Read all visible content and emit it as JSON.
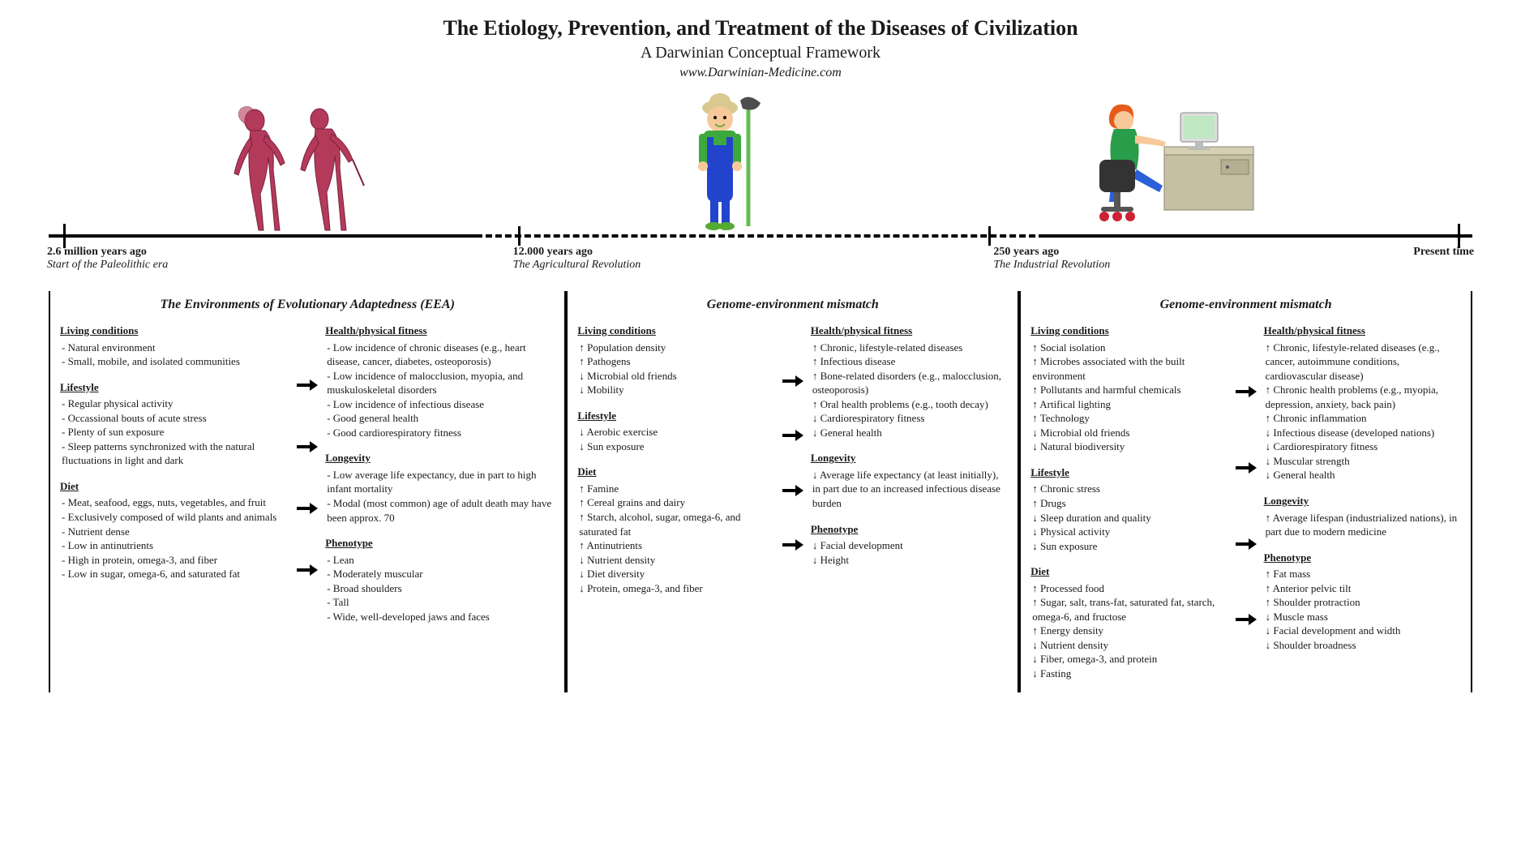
{
  "header": {
    "title": "The Etiology, Prevention, and Treatment of the Diseases of Civilization",
    "subtitle": "A Darwinian Conceptual Framework",
    "url": "www.Darwinian-Medicine.com"
  },
  "timeline": {
    "ticks": [
      {
        "pos_pct": 1,
        "top": "2.6 million years ago",
        "sub": "Start of the Paleolithic era",
        "major": true
      },
      {
        "pos_pct": 33,
        "top": "12.000 years ago",
        "sub": "The Agricultural Revolution",
        "major": false
      },
      {
        "pos_pct": 66,
        "top": "250 years ago",
        "sub": "The Industrial Revolution",
        "major": false
      },
      {
        "pos_pct": 99,
        "top": "Present time",
        "sub": "",
        "major": true
      }
    ],
    "colors": {
      "line": "#000000",
      "background": "#ffffff"
    }
  },
  "figures": {
    "caveman_color": "#b43a5a",
    "farmer": {
      "shirt": "#3da93d",
      "overalls": "#2244cc",
      "skin": "#f7c99a",
      "hat": "#d9c98e",
      "tool": "#4d4d4d"
    },
    "desk": {
      "hair": "#e85a1a",
      "shirt": "#2a9d4a",
      "pants": "#2b5fd9",
      "desk": "#c7bfa3",
      "screen": "#bfe8c2",
      "chair": "#333333",
      "wheel": "#c23"
    }
  },
  "eras": [
    {
      "title": "The Environments of Evolutionary Adaptedness (EEA)",
      "left": [
        {
          "h": "Living conditions",
          "items": [
            "- Natural environment",
            "- Small, mobile, and isolated communities"
          ]
        },
        {
          "h": "Lifestyle",
          "items": [
            "- Regular physical activity",
            "- Occassional bouts of acute stress",
            "- Plenty of sun exposure",
            "- Sleep patterns synchronized with the natural fluctuations in light and dark"
          ]
        },
        {
          "h": "Diet",
          "items": [
            "- Meat, seafood, eggs, nuts, vegetables, and fruit",
            "- Exclusively composed of wild plants and animals",
            "- Nutrient dense",
            "- Low in antinutrients",
            "- High in protein, omega-3, and fiber",
            "- Low in sugar, omega-6, and saturated fat"
          ]
        }
      ],
      "right": [
        {
          "h": "Health/physical fitness",
          "items": [
            "- Low incidence of chronic diseases (e.g., heart disease, cancer, diabetes, osteoporosis)",
            "- Low incidence of malocclusion, myopia, and muskuloskeletal disorders",
            "- Low incidence of infectious disease",
            "- Good general health",
            "- Good cardiorespiratory fitness"
          ]
        },
        {
          "h": "Longevity",
          "items": [
            "- Low average life expectancy, due in part to high infant mortality",
            "- Modal (most common) age of adult death may have been approx. 70"
          ]
        },
        {
          "h": "Phenotype",
          "items": [
            "- Lean",
            "- Moderately muscular",
            "- Broad shoulders",
            "- Tall",
            "- Wide, well-developed jaws and faces"
          ]
        }
      ],
      "arrow_count": 4
    },
    {
      "title": "Genome-environment mismatch",
      "left": [
        {
          "h": "Living conditions",
          "items": [
            "↑ Population density",
            "↑ Pathogens",
            "↓ Microbial old friends",
            "↓ Mobility"
          ]
        },
        {
          "h": "Lifestyle",
          "items": [
            "↓ Aerobic exercise",
            "↓ Sun exposure"
          ]
        },
        {
          "h": "Diet",
          "items": [
            "↑ Famine",
            "↑ Cereal grains and dairy",
            "↑ Starch, alcohol, sugar, omega-6, and saturated fat",
            "↑ Antinutrients",
            "↓ Nutrient density",
            "↓ Diet diversity",
            "↓ Protein, omega-3, and fiber"
          ]
        }
      ],
      "right": [
        {
          "h": "Health/physical fitness",
          "items": [
            "↑ Chronic, lifestyle-related diseases",
            "↑ Infectious disease",
            "↑ Bone-related disorders (e.g., malocclusion, osteoporosis)",
            "↑ Oral health problems (e.g., tooth decay)",
            "↓ Cardiorespiratory fitness",
            "↓ General health"
          ]
        },
        {
          "h": "Longevity",
          "items": [
            "↓ Average life expectancy (at least initially), in part due to an increased infectious disease burden"
          ]
        },
        {
          "h": "Phenotype",
          "items": [
            "↓ Facial development",
            "↓ Height"
          ]
        }
      ],
      "arrow_count": 4
    },
    {
      "title": "Genome-environment mismatch",
      "left": [
        {
          "h": "Living conditions",
          "items": [
            "↑ Social isolation",
            "↑ Microbes associated with the built environment",
            "↑ Pollutants and harmful chemicals",
            "↑ Artifical lighting",
            "↑ Technology",
            "↓ Microbial old friends",
            "↓ Natural biodiversity"
          ]
        },
        {
          "h": "Lifestyle",
          "items": [
            "↑ Chronic stress",
            "↑ Drugs",
            "↓ Sleep duration and quality",
            "↓ Physical activity",
            "↓ Sun exposure"
          ]
        },
        {
          "h": "Diet",
          "items": [
            "↑ Processed food",
            "↑ Sugar, salt, trans-fat, saturated fat, starch, omega-6, and fructose",
            "↑ Energy density",
            "↓ Nutrient density",
            "↓ Fiber, omega-3, and protein",
            "↓ Fasting"
          ]
        }
      ],
      "right": [
        {
          "h": "Health/physical fitness",
          "items": [
            "↑ Chronic, lifestyle-related diseases (e.g., cancer, autoimmune conditions, cardiovascular disease)",
            "↑ Chronic health problems (e.g., myopia, depression, anxiety, back pain)",
            "↑ Chronic inflammation",
            "↓ Infectious disease (developed nations)",
            "↓ Cardiorespiratory fitness",
            "↓ Muscular strength",
            "↓ General health"
          ]
        },
        {
          "h": "Longevity",
          "items": [
            "↑ Average lifespan (industrialized nations), in part due to modern medicine"
          ]
        },
        {
          "h": "Phenotype",
          "items": [
            "↑ Fat mass",
            "↑ Anterior pelvic tilt",
            "↑ Shoulder protraction",
            "↓ Muscle mass",
            "↓ Facial development and width",
            "↓ Shoulder broadness"
          ]
        }
      ],
      "arrow_count": 4
    }
  ]
}
